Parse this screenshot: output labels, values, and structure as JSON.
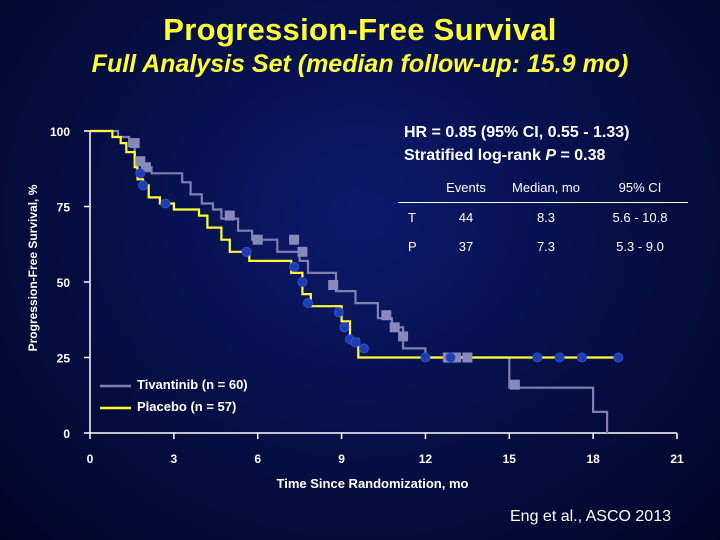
{
  "title": "Progression-Free Survival",
  "subtitle": "Full Analysis Set (median follow-up: 15.9 mo)",
  "hr_line": "HR = 0.85 (95% CI, 0.55 - 1.33)",
  "logrank_prefix": "Stratified log-rank ",
  "logrank_p": "P",
  "logrank_suffix": " = 0.38",
  "table": {
    "headers": [
      "",
      "Events",
      "Median, mo",
      "95% CI"
    ],
    "rows": [
      {
        "arm": "T",
        "events": "44",
        "median": "8.3",
        "ci": "5.6 - 10.8"
      },
      {
        "arm": "P",
        "events": "37",
        "median": "7.3",
        "ci": "5.3 - 9.0"
      }
    ]
  },
  "citation": "Eng et al., ASCO 2013",
  "colors": {
    "tivantinib": "#8080b0",
    "placebo": "#ffff33",
    "axis": "#ffffff"
  },
  "chart_data": {
    "type": "line",
    "xlabel": "Time Since Randomization, mo",
    "ylabel": "Progression-Free Survival, %",
    "xlim": [
      0,
      21
    ],
    "ylim": [
      0,
      100
    ],
    "xticks": [
      "0",
      "3",
      "6",
      "9",
      "12",
      "15",
      "18",
      "21"
    ],
    "yticks": [
      "0",
      "25",
      "50",
      "75",
      "100"
    ],
    "legend": "bottom-left",
    "series": [
      {
        "name": "Tivantinib (n = 60)",
        "step": [
          [
            0,
            100
          ],
          [
            1.0,
            100
          ],
          [
            1.0,
            98
          ],
          [
            1.4,
            98
          ],
          [
            1.4,
            95
          ],
          [
            1.6,
            95
          ],
          [
            1.6,
            91
          ],
          [
            1.9,
            91
          ],
          [
            1.9,
            88
          ],
          [
            2.2,
            88
          ],
          [
            2.2,
            86
          ],
          [
            3.3,
            86
          ],
          [
            3.3,
            83
          ],
          [
            3.6,
            83
          ],
          [
            3.6,
            79
          ],
          [
            4.0,
            79
          ],
          [
            4.0,
            76
          ],
          [
            4.4,
            76
          ],
          [
            4.4,
            74
          ],
          [
            4.7,
            74
          ],
          [
            4.7,
            71
          ],
          [
            5.3,
            71
          ],
          [
            5.3,
            67
          ],
          [
            5.8,
            67
          ],
          [
            5.8,
            64
          ],
          [
            6.7,
            64
          ],
          [
            6.7,
            60
          ],
          [
            7.5,
            60
          ],
          [
            7.5,
            57
          ],
          [
            7.8,
            57
          ],
          [
            7.8,
            53
          ],
          [
            8.8,
            53
          ],
          [
            8.8,
            47
          ],
          [
            9.5,
            47
          ],
          [
            9.5,
            43
          ],
          [
            10.3,
            43
          ],
          [
            10.3,
            38
          ],
          [
            10.8,
            38
          ],
          [
            10.8,
            35
          ],
          [
            11.2,
            35
          ],
          [
            11.2,
            28
          ],
          [
            12.0,
            28
          ],
          [
            12.0,
            25
          ],
          [
            15.0,
            25
          ],
          [
            15.0,
            15
          ],
          [
            18.0,
            15
          ],
          [
            18.0,
            7
          ],
          [
            18.5,
            7
          ],
          [
            18.5,
            0
          ]
        ],
        "censored": [
          [
            1.6,
            96
          ],
          [
            1.8,
            90
          ],
          [
            2.0,
            88
          ],
          [
            5.0,
            72
          ],
          [
            6.0,
            64
          ],
          [
            7.3,
            64
          ],
          [
            7.6,
            60
          ],
          [
            8.7,
            49
          ],
          [
            10.6,
            39
          ],
          [
            10.9,
            35
          ],
          [
            11.2,
            32
          ],
          [
            12.8,
            25
          ],
          [
            13.1,
            25
          ],
          [
            13.5,
            25
          ],
          [
            15.2,
            16
          ]
        ]
      },
      {
        "name": "Placebo (n = 57)",
        "step": [
          [
            0,
            100
          ],
          [
            0.8,
            100
          ],
          [
            0.8,
            98
          ],
          [
            1.1,
            98
          ],
          [
            1.1,
            96
          ],
          [
            1.3,
            96
          ],
          [
            1.3,
            93
          ],
          [
            1.6,
            93
          ],
          [
            1.6,
            88
          ],
          [
            1.7,
            88
          ],
          [
            1.7,
            84
          ],
          [
            1.9,
            84
          ],
          [
            1.9,
            82
          ],
          [
            2.1,
            82
          ],
          [
            2.1,
            78
          ],
          [
            2.5,
            78
          ],
          [
            2.5,
            76
          ],
          [
            3.0,
            76
          ],
          [
            3.0,
            74
          ],
          [
            3.9,
            74
          ],
          [
            3.9,
            72
          ],
          [
            4.2,
            72
          ],
          [
            4.2,
            68
          ],
          [
            4.7,
            68
          ],
          [
            4.7,
            64
          ],
          [
            5.0,
            64
          ],
          [
            5.0,
            60
          ],
          [
            5.7,
            60
          ],
          [
            5.7,
            57
          ],
          [
            7.2,
            57
          ],
          [
            7.2,
            53
          ],
          [
            7.6,
            53
          ],
          [
            7.6,
            46
          ],
          [
            7.9,
            46
          ],
          [
            7.9,
            42
          ],
          [
            9.0,
            42
          ],
          [
            9.0,
            37
          ],
          [
            9.3,
            37
          ],
          [
            9.3,
            31
          ],
          [
            9.6,
            31
          ],
          [
            9.6,
            25
          ],
          [
            18.9,
            25
          ]
        ],
        "censored": [
          [
            1.8,
            86
          ],
          [
            1.9,
            82
          ],
          [
            2.7,
            76
          ],
          [
            5.6,
            60
          ],
          [
            7.3,
            55
          ],
          [
            7.6,
            50
          ],
          [
            7.8,
            43
          ],
          [
            8.9,
            40
          ],
          [
            9.1,
            35
          ],
          [
            9.3,
            31
          ],
          [
            9.5,
            30
          ],
          [
            9.8,
            28
          ],
          [
            12.0,
            25
          ],
          [
            12.9,
            25
          ],
          [
            16.0,
            25
          ],
          [
            16.8,
            25
          ],
          [
            17.6,
            25
          ],
          [
            18.9,
            25
          ]
        ]
      }
    ]
  }
}
